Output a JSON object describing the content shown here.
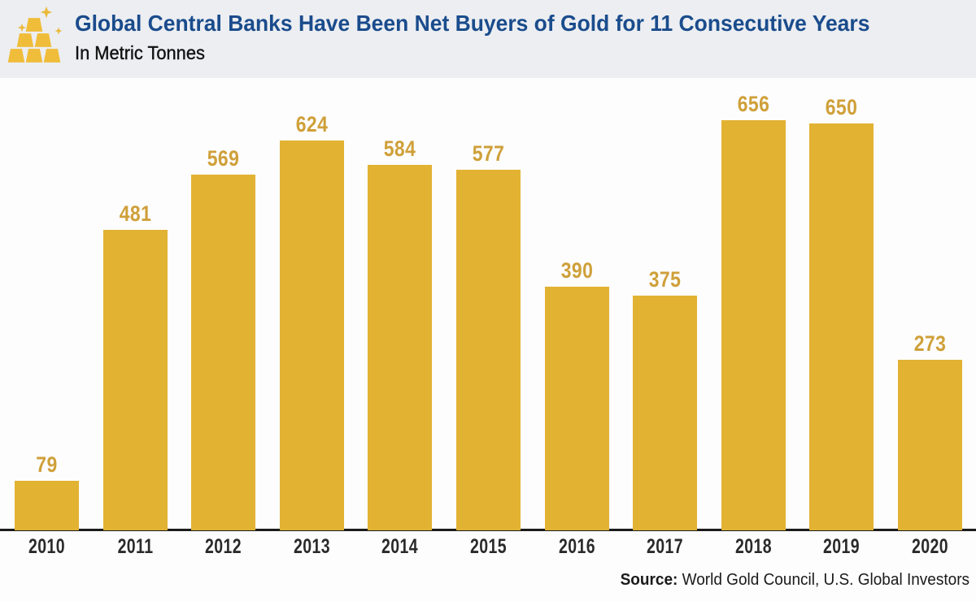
{
  "header": {
    "title": "Global Central Banks Have Been Net Buyers of Gold for 11 Consecutive Years",
    "subtitle": "In Metric Tonnes",
    "icon": "gold-bars-icon"
  },
  "source": {
    "label": "Source:",
    "text": " World Gold Council, U.S. Global Investors"
  },
  "colors": {
    "bar": "#E2B233",
    "value_label": "#CFA039",
    "year_label": "#2A2A2A",
    "axis": "#1B1B1B",
    "title": "#1A4C8C",
    "header_bg": "#ECEEF2",
    "gold_icon": "#F0BD3A"
  },
  "chart_data": {
    "type": "bar",
    "categories": [
      "2010",
      "2011",
      "2012",
      "2013",
      "2014",
      "2015",
      "2016",
      "2017",
      "2018",
      "2019",
      "2020"
    ],
    "values": [
      79,
      481,
      569,
      624,
      584,
      577,
      390,
      375,
      656,
      650,
      273
    ],
    "title": "Global Central Banks Have Been Net Buyers of Gold for 11 Consecutive Years",
    "xlabel": "",
    "ylabel": "In Metric Tonnes",
    "ylim": [
      0,
      700
    ],
    "grid": false,
    "legend": false,
    "value_labels": true
  }
}
